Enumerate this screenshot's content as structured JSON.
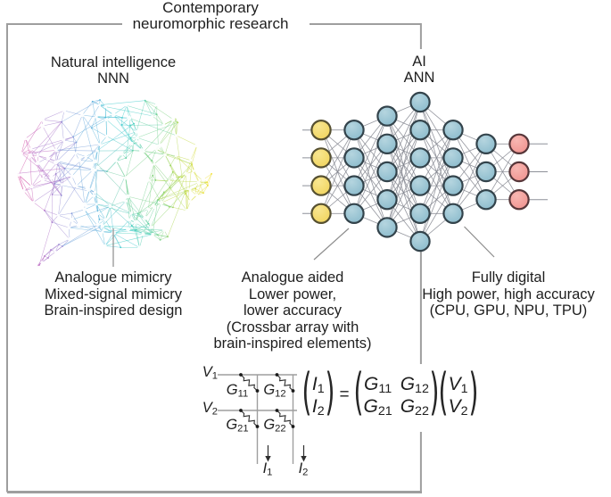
{
  "title": {
    "line1": "Contemporary",
    "line2": "neuromorphic research"
  },
  "natural": {
    "heading1": "Natural intelligence",
    "heading2": "NNN",
    "caption": [
      "Analogue mimicry",
      "Mixed-signal mimicry",
      "Brain-inspired design"
    ]
  },
  "ai": {
    "heading1": "AI",
    "heading2": "ANN"
  },
  "analogue_caption": [
    "Analogue aided",
    "Lower power,",
    "lower accuracy",
    "(Crossbar array with",
    "brain-inspired elements)"
  ],
  "digital_caption": [
    "Fully digital",
    "High power, high accuracy",
    "(CPU, GPU, NPU, TPU)"
  ],
  "crossbar": {
    "inputs": [
      {
        "base": "V",
        "sub": "1"
      },
      {
        "base": "V",
        "sub": "2"
      }
    ],
    "conductances": [
      {
        "base": "G",
        "sub": "11"
      },
      {
        "base": "G",
        "sub": "12"
      },
      {
        "base": "G",
        "sub": "21"
      },
      {
        "base": "G",
        "sub": "22"
      }
    ],
    "outputs": [
      {
        "base": "I",
        "sub": "1"
      },
      {
        "base": "I",
        "sub": "2"
      }
    ]
  },
  "equation": {
    "paren_open": "(",
    "paren_close": ")",
    "equals": "=",
    "lhs": [
      {
        "base": "I",
        "sub": "1"
      },
      {
        "base": "I",
        "sub": "2"
      }
    ],
    "matrix": [
      {
        "base": "G",
        "sub": "11"
      },
      {
        "base": "G",
        "sub": "12"
      },
      {
        "base": "G",
        "sub": "21"
      },
      {
        "base": "G",
        "sub": "22"
      }
    ],
    "rhs": [
      {
        "base": "V",
        "sub": "1"
      },
      {
        "base": "V",
        "sub": "2"
      }
    ]
  },
  "ann": {
    "layers": [
      {
        "count": 4,
        "fill": "#efd052",
        "highlight": "#f8e690",
        "stroke": "#565031",
        "role": "input"
      },
      {
        "count": 4,
        "fill": "#82b5c8",
        "highlight": "#b5d5df",
        "stroke": "#33434b"
      },
      {
        "count": 5,
        "fill": "#82b5c8",
        "highlight": "#b5d5df",
        "stroke": "#33434b"
      },
      {
        "count": 6,
        "fill": "#82b5c8",
        "highlight": "#b5d5df",
        "stroke": "#33434b"
      },
      {
        "count": 4,
        "fill": "#82b5c8",
        "highlight": "#b5d5df",
        "stroke": "#33434b"
      },
      {
        "count": 3,
        "fill": "#82b5c8",
        "highlight": "#b5d5df",
        "stroke": "#33434b"
      },
      {
        "count": 3,
        "fill": "#ef8b88",
        "highlight": "#f8b7b2",
        "stroke": "#563639",
        "role": "output"
      }
    ],
    "link_color": "#82858e"
  },
  "brain": {
    "gradient": [
      "#e23a90",
      "#bb6fc6",
      "#8795d8",
      "#55b3dc",
      "#3fcdcc",
      "#64d0a0",
      "#b8d84a",
      "#f2e23a"
    ],
    "core_color": "#a8d24a",
    "dot_color": "#ffffff"
  },
  "lines": {
    "bracket": "#9e9e9e",
    "connector": "#8c8c8c",
    "circuit_wire": "#9e9e9e",
    "circuit_ink": "#2e2e2e"
  }
}
